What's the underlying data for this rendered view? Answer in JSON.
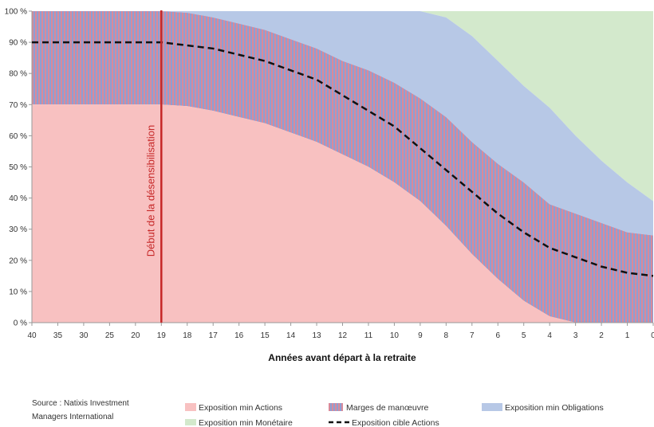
{
  "chart_data": {
    "type": "area",
    "title": "",
    "xlabel": "Années avant départ à la retraite",
    "ylabel": "",
    "x_ticks": [
      "40",
      "35",
      "30",
      "25",
      "20",
      "19",
      "18",
      "17",
      "16",
      "15",
      "14",
      "13",
      "12",
      "11",
      "10",
      "9",
      "8",
      "7",
      "6",
      "5",
      "4",
      "3",
      "2",
      "1",
      "0"
    ],
    "y_ticks": [
      "0 %",
      "10 %",
      "20 %",
      "30 %",
      "40 %",
      "50 %",
      "60 %",
      "70 %",
      "80 %",
      "90 %",
      "100 %"
    ],
    "ylim": [
      0,
      100
    ],
    "grid": false,
    "legend_position": "bottom",
    "colors": {
      "actions": "#f8c1c1",
      "marges": "#8d9fd4",
      "marges_stripe": "#d98a9a",
      "obligations": "#b7c8e6",
      "monetaire": "#d3e9cc",
      "cible": "#111111",
      "annotation": "#c62828"
    },
    "series": [
      {
        "name": "Exposition min Actions",
        "kind": "area",
        "values": [
          70,
          70,
          70,
          70,
          70,
          70,
          69.5,
          68,
          66,
          64,
          61,
          58,
          54,
          50,
          45,
          39,
          31,
          22,
          14,
          7,
          2,
          0,
          0,
          0,
          0
        ]
      },
      {
        "name": "Marges de manœuvre",
        "kind": "striped-band",
        "lower_series": "Exposition min Actions",
        "upper": [
          100,
          100,
          100,
          100,
          100,
          100,
          99.5,
          98,
          96,
          94,
          91,
          88,
          84,
          81,
          77,
          72,
          66,
          58,
          51,
          45,
          38,
          35,
          32,
          29,
          28
        ]
      },
      {
        "name": "Exposition min Obligations",
        "kind": "area",
        "upper": [
          100,
          100,
          100,
          100,
          100,
          100,
          100,
          100,
          100,
          100,
          100,
          100,
          100,
          100,
          100,
          100,
          98,
          92,
          84,
          76,
          69,
          60,
          52,
          45,
          39
        ]
      },
      {
        "name": "Exposition min Monétaire",
        "kind": "area",
        "upper": [
          100,
          100,
          100,
          100,
          100,
          100,
          100,
          100,
          100,
          100,
          100,
          100,
          100,
          100,
          100,
          100,
          100,
          100,
          100,
          100,
          100,
          100,
          100,
          100,
          100
        ]
      },
      {
        "name": "Exposition cible Actions",
        "kind": "dashed-line",
        "values": [
          90,
          90,
          90,
          90,
          90,
          90,
          89,
          88,
          86,
          84,
          81,
          78,
          73,
          68,
          63,
          56,
          49,
          42,
          35,
          29,
          24,
          21,
          18,
          16,
          15
        ]
      }
    ],
    "annotations": [
      {
        "text": "Début de la désensibilisation",
        "at_x": "19",
        "kind": "vertical-line"
      }
    ]
  },
  "source": {
    "line1": "Source : Natixis Investment",
    "line2": "Managers International"
  },
  "legend": {
    "actions": "Exposition min Actions",
    "marges": "Marges de manœuvre",
    "obligations": "Exposition min Obligations",
    "monetaire": "Exposition min Monétaire",
    "cible": "Exposition cible Actions"
  }
}
